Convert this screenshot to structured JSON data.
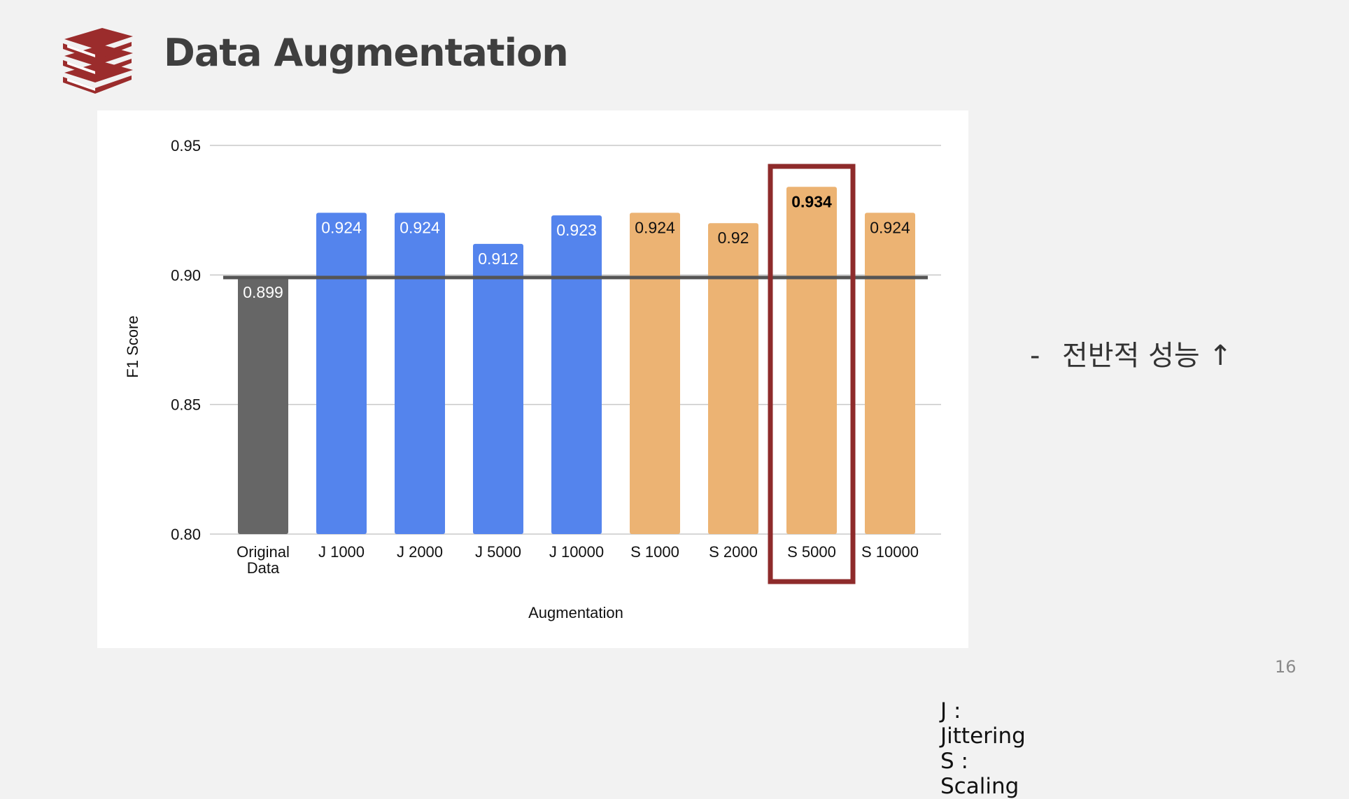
{
  "slide": {
    "title": "Data Augmentation",
    "bullet_marker": "-",
    "bullet_text": "전반적 성능 ↑",
    "page_number": "16",
    "legend_note": [
      "J : Jittering",
      "S : Scaling"
    ],
    "logo_icon": "books-stack-icon"
  },
  "chart_data": {
    "type": "bar",
    "categories": [
      "Original\nData",
      "J 1000",
      "J 2000",
      "J 5000",
      "J 10000",
      "S 1000",
      "S 2000",
      "S 5000",
      "S 10000"
    ],
    "values": [
      0.899,
      0.924,
      0.924,
      0.912,
      0.923,
      0.924,
      0.92,
      0.934,
      0.924
    ],
    "value_labels": [
      "0.899",
      "0.924",
      "0.924",
      "0.912",
      "0.923",
      "0.924",
      "0.92",
      "0.934",
      "0.924"
    ],
    "colors": [
      "#666666",
      "#5484ed",
      "#5484ed",
      "#5484ed",
      "#5484ed",
      "#ecb373",
      "#ecb373",
      "#ecb373",
      "#ecb373"
    ],
    "label_colors": [
      "#ffffff",
      "#ffffff",
      "#ffffff",
      "#ffffff",
      "#ffffff",
      "#111111",
      "#111111",
      "#111111",
      "#111111"
    ],
    "title": "",
    "xlabel": "Augmentation",
    "ylabel": "F1 Score",
    "ylim": [
      0.8,
      0.95
    ],
    "yticks": [
      0.8,
      0.85,
      0.9,
      0.95
    ],
    "ytick_labels": [
      "0.80",
      "0.85",
      "0.90",
      "0.95"
    ],
    "baseline": 0.899,
    "baseline_color": "#555555",
    "highlight_category": "S 5000",
    "highlight_color": "#8e2b2b",
    "grid": true,
    "legend": "none"
  }
}
